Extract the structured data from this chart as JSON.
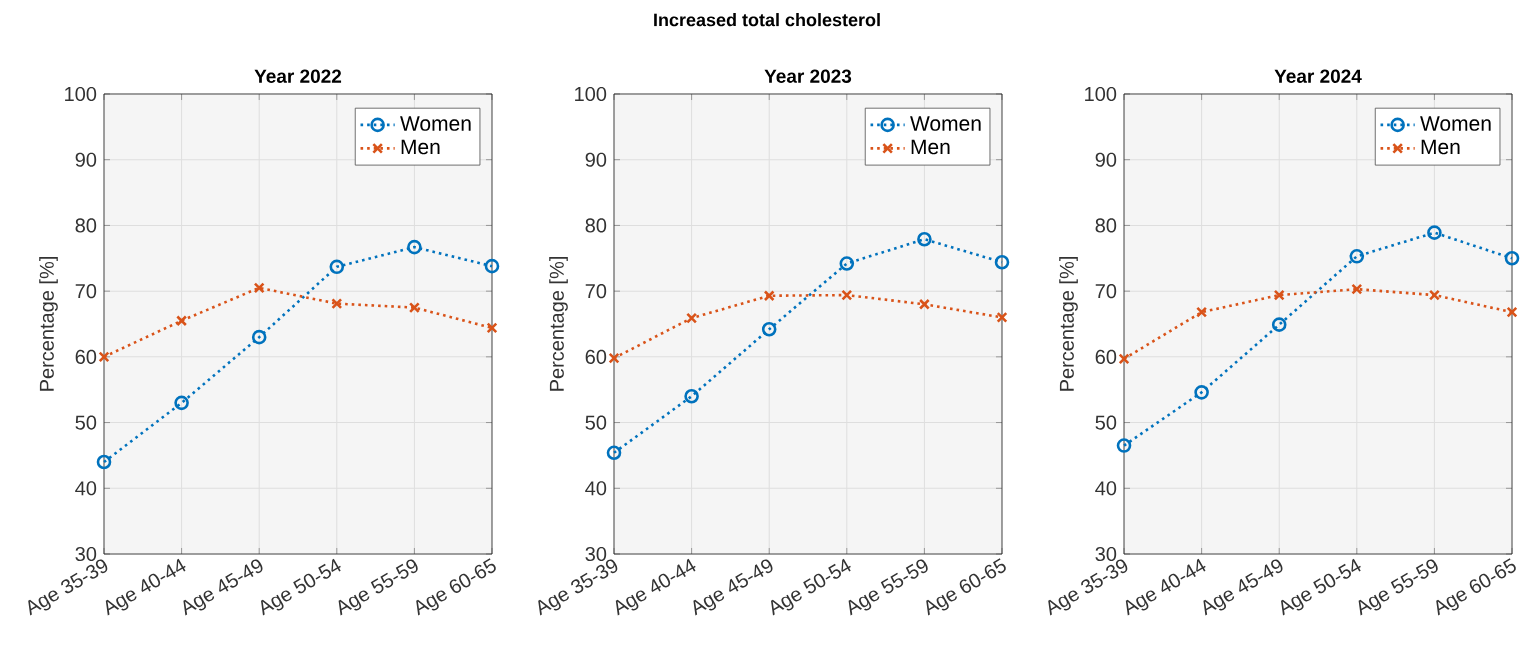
{
  "chart_data": [
    {
      "type": "line",
      "title": "Year 2022",
      "ylabel": "Percentage [%]",
      "annotations": [
        "Increased total cholesterol"
      ],
      "categories": [
        "Age 35-39",
        "Age 40-44",
        "Age 45-49",
        "Age 50-54",
        "Age 55-59",
        "Age 60-65"
      ],
      "series": [
        {
          "name": "Women",
          "color": "#0072bd",
          "marker": "circle",
          "values": [
            44,
            53,
            63,
            73.7,
            76.7,
            73.8
          ]
        },
        {
          "name": "Men",
          "color": "#d95319",
          "marker": "cross",
          "values": [
            60,
            65.5,
            70.5,
            68.1,
            67.5,
            64.4
          ]
        }
      ],
      "ylim": [
        30,
        100
      ],
      "yticks": [
        30,
        40,
        50,
        60,
        70,
        80,
        90,
        100
      ],
      "grid": true,
      "legend": "top right",
      "line_style": "dotted"
    },
    {
      "type": "line",
      "title": "Year 2023",
      "ylabel": "Percentage [%]",
      "categories": [
        "Age 35-39",
        "Age 40-44",
        "Age 45-49",
        "Age 50-54",
        "Age 55-59",
        "Age 60-65"
      ],
      "series": [
        {
          "name": "Women",
          "color": "#0072bd",
          "marker": "circle",
          "values": [
            45.4,
            54,
            64.2,
            74.2,
            77.9,
            74.4
          ]
        },
        {
          "name": "Men",
          "color": "#d95319",
          "marker": "cross",
          "values": [
            59.8,
            65.9,
            69.3,
            69.4,
            68,
            66
          ]
        }
      ],
      "ylim": [
        30,
        100
      ],
      "yticks": [
        30,
        40,
        50,
        60,
        70,
        80,
        90,
        100
      ],
      "grid": true,
      "legend": "top right",
      "line_style": "dotted"
    },
    {
      "type": "line",
      "title": "Year 2024",
      "ylabel": "Percentage [%]",
      "categories": [
        "Age 35-39",
        "Age 40-44",
        "Age 45-49",
        "Age 50-54",
        "Age 55-59",
        "Age 60-65"
      ],
      "series": [
        {
          "name": "Women",
          "color": "#0072bd",
          "marker": "circle",
          "values": [
            46.5,
            54.6,
            64.9,
            75.3,
            78.9,
            75
          ]
        },
        {
          "name": "Men",
          "color": "#d95319",
          "marker": "cross",
          "values": [
            59.7,
            66.8,
            69.4,
            70.3,
            69.4,
            66.8
          ]
        }
      ],
      "ylim": [
        30,
        100
      ],
      "yticks": [
        30,
        40,
        50,
        60,
        70,
        80,
        90,
        100
      ],
      "grid": true,
      "legend": "top right",
      "line_style": "dotted"
    }
  ]
}
